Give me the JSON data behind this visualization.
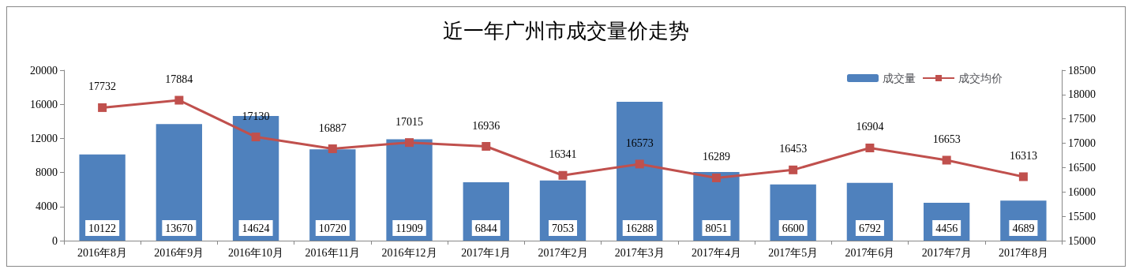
{
  "chart_data": {
    "type": "bar",
    "title": "近一年广州市成交量价走势",
    "categories": [
      "2016年8月",
      "2016年9月",
      "2016年10月",
      "2016年11月",
      "2016年12月",
      "2017年1月",
      "2017年2月",
      "2017年3月",
      "2017年4月",
      "2017年5月",
      "2017年6月",
      "2017年7月",
      "2017年8月"
    ],
    "series": [
      {
        "name": "成交量",
        "color": "#4f81bd",
        "values": [
          10122,
          13670,
          14624,
          10720,
          11909,
          6844,
          7053,
          16288,
          8051,
          6600,
          6792,
          4456,
          4689
        ]
      },
      {
        "name": "成交均价",
        "type": "line",
        "axis": "y2",
        "color": "#c0504d",
        "marker": "square",
        "values": [
          17732,
          17884,
          17130,
          16887,
          17015,
          16936,
          16341,
          16573,
          16289,
          16453,
          16904,
          16653,
          16313
        ]
      }
    ],
    "ylim": [
      0,
      20000
    ],
    "yticks": [
      0,
      4000,
      8000,
      12000,
      16000,
      20000
    ],
    "y2lim": [
      15000,
      18500
    ],
    "y2ticks": [
      15000,
      15500,
      16000,
      16500,
      17000,
      17500,
      18000,
      18500
    ],
    "data_labels": true,
    "legend": "top right",
    "grid": false
  }
}
